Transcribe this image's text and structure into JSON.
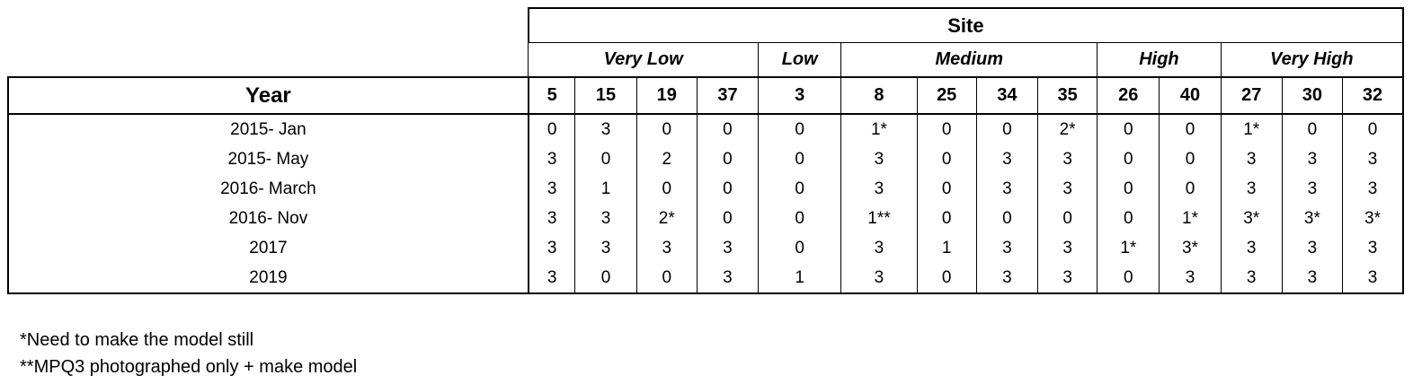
{
  "table": {
    "site_label": "Site",
    "year_label": "Year",
    "categories": [
      {
        "name": "Very Low",
        "span": 4
      },
      {
        "name": "Low",
        "span": 1
      },
      {
        "name": "Medium",
        "span": 4
      },
      {
        "name": "High",
        "span": 2
      },
      {
        "name": "Very High",
        "span": 3
      }
    ],
    "sites": [
      "5",
      "15",
      "19",
      "37",
      "3",
      "8",
      "25",
      "34",
      "35",
      "26",
      "40",
      "27",
      "30",
      "32"
    ],
    "rows": [
      {
        "year": "2015- Jan",
        "values": [
          "0",
          "3",
          "0",
          "0",
          "0",
          "1*",
          "0",
          "0",
          "2*",
          "0",
          "0",
          "1*",
          "0",
          "0"
        ]
      },
      {
        "year": "2015- May",
        "values": [
          "3",
          "0",
          "2",
          "0",
          "0",
          "3",
          "0",
          "3",
          "3",
          "0",
          "0",
          "3",
          "3",
          "3"
        ]
      },
      {
        "year": "2016- March",
        "values": [
          "3",
          "1",
          "0",
          "0",
          "0",
          "3",
          "0",
          "3",
          "3",
          "0",
          "0",
          "3",
          "3",
          "3"
        ]
      },
      {
        "year": "2016- Nov",
        "values": [
          "3",
          "3",
          "2*",
          "0",
          "0",
          "1**",
          "0",
          "0",
          "0",
          "0",
          "1*",
          "3*",
          "3*",
          "3*"
        ]
      },
      {
        "year": "2017",
        "values": [
          "3",
          "3",
          "3",
          "3",
          "0",
          "3",
          "1",
          "3",
          "3",
          "1*",
          "3*",
          "3",
          "3",
          "3"
        ]
      },
      {
        "year": "2019",
        "values": [
          "3",
          "0",
          "0",
          "3",
          "1",
          "3",
          "0",
          "3",
          "3",
          "0",
          "3",
          "3",
          "3",
          "3"
        ]
      }
    ]
  },
  "notes": [
    "*Need to make the model still",
    "**MPQ3 photographed only + make model"
  ]
}
